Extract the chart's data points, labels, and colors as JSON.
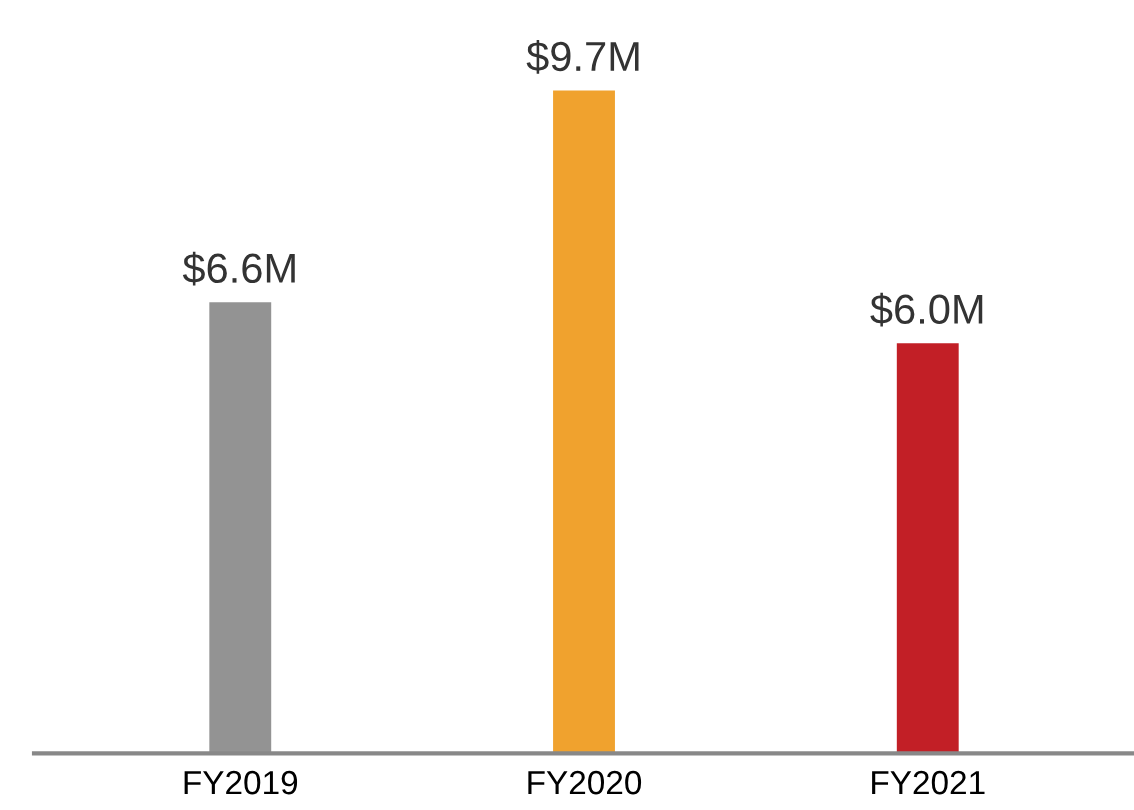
{
  "chart_data": {
    "type": "bar",
    "categories": [
      "FY2019",
      "FY2020",
      "FY2021"
    ],
    "values": [
      6.6,
      9.7,
      6.0
    ],
    "colors": [
      "#939393",
      "#f0a22e",
      "#c21f26"
    ],
    "value_labels": [
      "$6.6M",
      "$9.7M",
      "$6.0M"
    ],
    "grid": false,
    "legend": false
  }
}
